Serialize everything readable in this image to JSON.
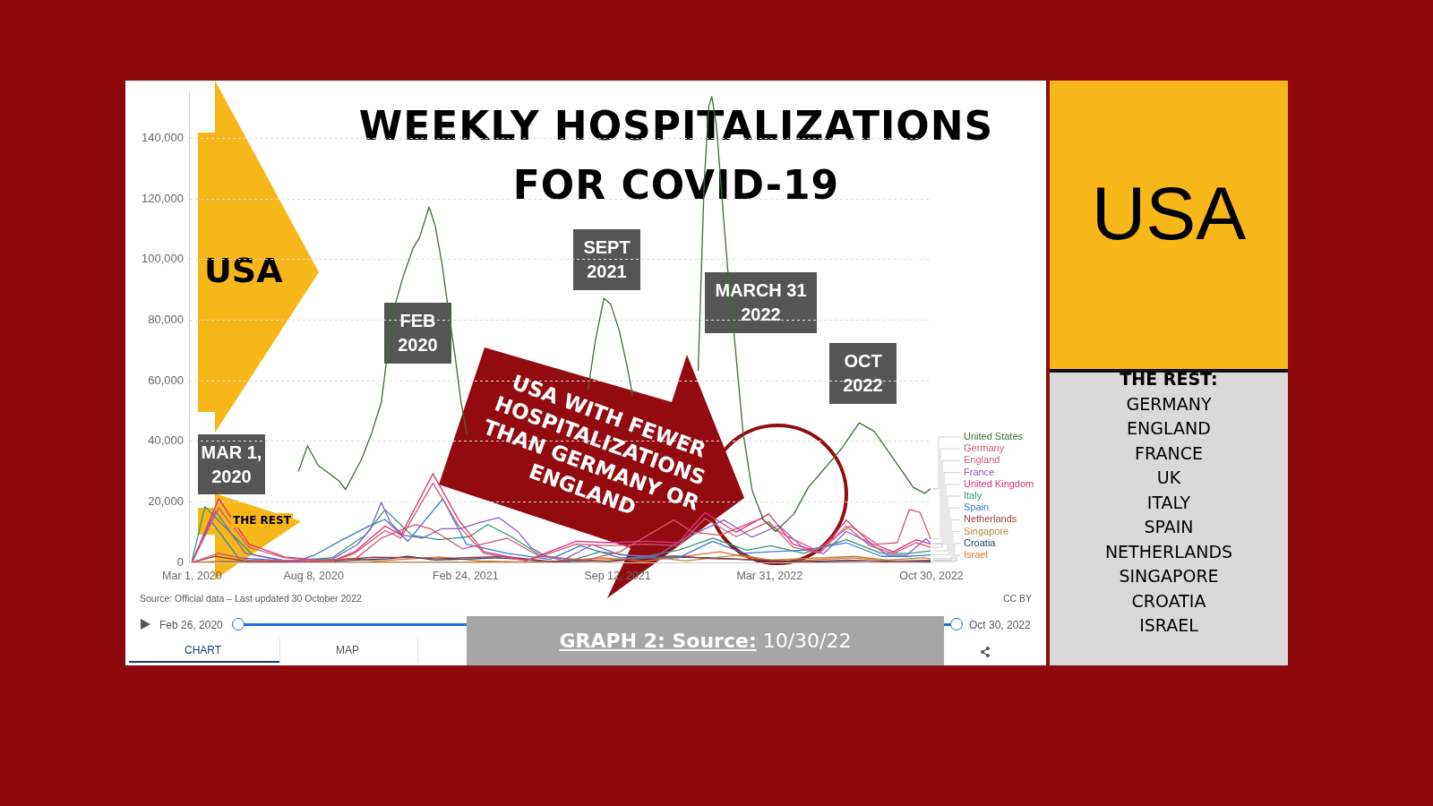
{
  "chart_data": {
    "type": "line",
    "title": "WEEKLY HOSPITALIZATIONS FOR COVID-19",
    "xlim": [
      "2020-02-26",
      "2022-10-30"
    ],
    "xticks": [
      {
        "value": "2020-03-01",
        "label": "Mar 1, 2020"
      },
      {
        "value": "2020-08-08",
        "label": "Aug 8, 2020"
      },
      {
        "value": "2021-02-24",
        "label": "Feb 24, 2021"
      },
      {
        "value": "2021-09-12",
        "label": "Sep 12, 2021"
      },
      {
        "value": "2022-03-31",
        "label": "Mar 31, 2022"
      },
      {
        "value": "2022-10-30",
        "label": "Oct 30, 2022"
      }
    ],
    "ylim": [
      0,
      155000
    ],
    "yticks": [
      0,
      {
        "value": 20000,
        "label": "20,000"
      },
      {
        "value": 40000,
        "label": "40,000"
      },
      {
        "value": 60000,
        "label": "60,000"
      },
      {
        "value": 80000,
        "label": "80,000"
      },
      {
        "value": 100000,
        "label": "100,000"
      },
      {
        "value": 120000,
        "label": "120,000"
      },
      {
        "value": 140000,
        "label": "140,000"
      }
    ],
    "grid": "y",
    "legend": "right",
    "series": [
      {
        "name": "United States",
        "color": "#3b6e35",
        "x": [
          "2020-07-19",
          "2020-07-31",
          "2020-08-14",
          "2020-08-28",
          "2020-09-10",
          "2020-09-19",
          "2020-10-10",
          "2020-10-23",
          "2020-11-05",
          "2020-11-13",
          "2020-11-22",
          "2020-12-04",
          "2020-12-17",
          "2020-12-25",
          "2021-01-07",
          "2021-01-15",
          "2021-01-24",
          "2021-02-01",
          "2021-02-10",
          "2021-02-18",
          "2021-02-26",
          "2021-05-01",
          "2021-08-04",
          "2021-08-14",
          "2021-08-25",
          "2021-09-03",
          "2021-09-14",
          "2021-09-24",
          "2021-10-02",
          "2021-11-15",
          "2021-12-27",
          "2021-12-31",
          "2022-01-04",
          "2022-01-10",
          "2022-01-14",
          "2022-01-20",
          "2022-01-29",
          "2022-02-04",
          "2022-02-11",
          "2022-02-24",
          "2022-03-08",
          "2022-03-23",
          "2022-04-08",
          "2022-05-02",
          "2022-05-21",
          "2022-06-10",
          "2022-07-03",
          "2022-07-27",
          "2022-08-16",
          "2022-09-12",
          "2022-10-06",
          "2022-10-21",
          "2022-10-29"
        ],
        "values": [
          30000,
          38500,
          32000,
          29500,
          27000,
          24100,
          34000,
          42400,
          52800,
          68400,
          84000,
          94500,
          103800,
          107000,
          117300,
          111100,
          98600,
          84000,
          68400,
          52800,
          42000,
          null,
          57000,
          73600,
          87200,
          85200,
          76700,
          65400,
          54900,
          null,
          63200,
          94500,
          125800,
          150700,
          153800,
          144400,
          115200,
          96600,
          78800,
          43200,
          23800,
          14000,
          10200,
          16000,
          24800,
          30600,
          37400,
          46100,
          43200,
          33500,
          24800,
          22800,
          24300
        ]
      },
      {
        "name": "Germany",
        "color": "#d6566e",
        "x": [
          "2020-03-01",
          "2020-04-05",
          "2020-05-15",
          "2020-08-01",
          "2020-10-01",
          "2020-11-05",
          "2020-12-20",
          "2021-01-10",
          "2021-02-20",
          "2021-04-20",
          "2021-06-01",
          "2021-08-01",
          "2021-09-15",
          "2021-11-25",
          "2021-12-20",
          "2022-01-25",
          "2022-03-20",
          "2022-04-20",
          "2022-06-01",
          "2022-07-15",
          "2022-08-20",
          "2022-09-15",
          "2022-10-01",
          "2022-10-15",
          "2022-10-29"
        ],
        "values": [
          0,
          3000,
          800,
          300,
          1000,
          8000,
          12500,
          11000,
          4500,
          8000,
          2000,
          800,
          3500,
          14000,
          10000,
          9000,
          14500,
          9000,
          4000,
          12000,
          6000,
          6500,
          17500,
          16500,
          7800
        ]
      },
      {
        "name": "England",
        "color": "#cc5b74",
        "x": [
          "2020-03-01",
          "2020-04-05",
          "2020-05-15",
          "2020-07-01",
          "2020-09-01",
          "2020-10-01",
          "2020-11-10",
          "2020-12-01",
          "2021-01-12",
          "2021-02-15",
          "2021-03-20",
          "2021-05-15",
          "2021-07-20",
          "2021-09-01",
          "2021-10-20",
          "2021-12-01",
          "2022-01-05",
          "2022-02-15",
          "2022-03-30",
          "2022-05-01",
          "2022-06-05",
          "2022-07-10",
          "2022-08-10",
          "2022-09-10",
          "2022-10-10",
          "2022-10-29"
        ],
        "values": [
          0,
          18000,
          5000,
          1500,
          300,
          3000,
          10500,
          8000,
          26200,
          12000,
          3000,
          500,
          6000,
          5500,
          6000,
          5500,
          14500,
          8500,
          13500,
          5000,
          3000,
          12000,
          5500,
          3000,
          6500,
          5000
        ]
      },
      {
        "name": "France",
        "color": "#8a5cc8",
        "x": [
          "2020-03-01",
          "2020-04-01",
          "2020-05-10",
          "2020-07-01",
          "2020-09-01",
          "2020-10-05",
          "2020-10-22",
          "2020-11-05",
          "2020-11-17",
          "2020-12-04",
          "2020-12-29",
          "2021-01-23",
          "2021-02-17",
          "2021-03-15",
          "2021-04-09",
          "2021-05-04",
          "2021-05-21",
          "2021-06-11",
          "2021-07-02",
          "2021-08-10",
          "2021-09-15",
          "2021-11-01",
          "2021-12-10",
          "2022-01-30",
          "2022-03-08",
          "2022-04-12",
          "2022-05-16",
          "2022-06-10",
          "2022-07-10",
          "2022-08-03",
          "2022-09-03",
          "2022-09-27",
          "2022-10-23",
          "2022-10-29"
        ],
        "values": [
          0,
          17000,
          3000,
          600,
          1000,
          6000,
          11100,
          19800,
          13200,
          9000,
          8000,
          11100,
          11100,
          13200,
          14800,
          10100,
          4900,
          1800,
          700,
          5900,
          2500,
          2000,
          8000,
          14000,
          8300,
          12200,
          4400,
          2900,
          10200,
          7300,
          2400,
          2400,
          7800,
          6300
        ]
      },
      {
        "name": "United Kingdom",
        "color": "#e0307a",
        "x": [
          "2020-03-01",
          "2020-04-05",
          "2020-05-15",
          "2020-07-01",
          "2020-09-01",
          "2020-10-01",
          "2020-11-10",
          "2020-12-01",
          "2021-01-12",
          "2021-02-15",
          "2021-03-20",
          "2021-05-15",
          "2021-07-20",
          "2021-09-01",
          "2021-10-20",
          "2021-12-01",
          "2022-01-05",
          "2022-02-15",
          "2022-03-30",
          "2022-05-01",
          "2022-06-05",
          "2022-07-10",
          "2022-08-10",
          "2022-09-10",
          "2022-10-10",
          "2022-10-29"
        ],
        "values": [
          0,
          21000,
          6000,
          1800,
          400,
          3500,
          12000,
          9000,
          29300,
          14000,
          3500,
          600,
          7000,
          6500,
          7000,
          6500,
          16500,
          10000,
          16000,
          6000,
          3500,
          14000,
          6500,
          3500,
          7500,
          6000
        ]
      },
      {
        "name": "Italy",
        "color": "#2c9a72",
        "x": [
          "2020-03-01",
          "2020-03-18",
          "2020-04-20",
          "2020-05-20",
          "2020-07-01",
          "2020-09-01",
          "2020-10-15",
          "2020-11-10",
          "2020-12-15",
          "2021-01-20",
          "2021-03-01",
          "2021-03-25",
          "2021-04-25",
          "2021-06-01",
          "2021-07-15",
          "2021-08-20",
          "2021-10-15",
          "2021-12-01",
          "2022-01-15",
          "2022-03-01",
          "2022-04-01",
          "2022-05-15",
          "2022-07-10",
          "2022-08-25",
          "2022-10-01",
          "2022-10-29"
        ],
        "values": [
          500,
          18400,
          10000,
          2500,
          500,
          1500,
          9000,
          17400,
          9000,
          7500,
          8500,
          12500,
          8500,
          2500,
          800,
          3500,
          1800,
          4000,
          8000,
          4000,
          5500,
          3000,
          7500,
          3000,
          3000,
          3800
        ]
      },
      {
        "name": "Spain",
        "color": "#3a7ad0",
        "x": [
          "2020-03-01",
          "2020-03-25",
          "2020-05-01",
          "2020-07-15",
          "2020-08-10",
          "2020-09-15",
          "2020-10-20",
          "2020-11-10",
          "2020-12-10",
          "2021-01-25",
          "2021-02-25",
          "2021-04-20",
          "2021-06-15",
          "2021-07-25",
          "2021-09-15",
          "2021-12-01",
          "2022-01-15",
          "2022-02-25",
          "2022-04-01",
          "2022-05-15",
          "2022-07-10",
          "2022-08-25",
          "2022-10-01",
          "2022-10-29"
        ],
        "values": [
          0,
          14000,
          1500,
          300,
          2500,
          7500,
          12000,
          14200,
          7000,
          21000,
          6000,
          3000,
          1000,
          5500,
          1500,
          1500,
          7000,
          3000,
          3500,
          4000,
          6500,
          2000,
          2000,
          2500
        ]
      },
      {
        "name": "Netherlands",
        "color": "#9a3d3d",
        "x": [
          "2020-03-01",
          "2020-04-01",
          "2020-05-15",
          "2020-08-01",
          "2020-10-25",
          "2020-12-15",
          "2021-01-15",
          "2021-04-15",
          "2021-06-15",
          "2021-07-20",
          "2021-09-01",
          "2021-11-25",
          "2022-01-15",
          "2022-03-15",
          "2022-05-01",
          "2022-07-10",
          "2022-09-01",
          "2022-10-29"
        ],
        "values": [
          0,
          2000,
          300,
          100,
          1700,
          1600,
          1200,
          2000,
          300,
          700,
          300,
          2200,
          1200,
          900,
          200,
          800,
          300,
          700
        ]
      },
      {
        "name": "Singapore",
        "color": "#b8863a",
        "x": [
          "2020-03-01",
          "2020-04-20",
          "2020-08-01",
          "2021-06-01",
          "2021-09-25",
          "2021-10-25",
          "2021-12-10",
          "2022-02-20",
          "2022-04-01",
          "2022-07-20",
          "2022-09-01",
          "2022-10-20",
          "2022-10-29"
        ],
        "values": [
          0,
          300,
          100,
          100,
          1200,
          1800,
          500,
          2500,
          800,
          2000,
          800,
          1500,
          1200
        ]
      },
      {
        "name": "Croatia",
        "color": "#1e3f73",
        "x": [
          "2020-03-01",
          "2020-08-01",
          "2020-11-15",
          "2020-12-10",
          "2021-01-15",
          "2021-04-10",
          "2021-06-15",
          "2021-09-01",
          "2021-11-15",
          "2022-01-15",
          "2022-03-15",
          "2022-06-01",
          "2022-08-01",
          "2022-10-29"
        ],
        "values": [
          0,
          100,
          1200,
          2000,
          800,
          1500,
          200,
          500,
          1800,
          1500,
          700,
          200,
          400,
          300
        ]
      },
      {
        "name": "Israel",
        "color": "#e0702a",
        "x": [
          "2020-03-01",
          "2020-04-10",
          "2020-06-01",
          "2020-09-25",
          "2020-11-01",
          "2021-01-20",
          "2021-03-15",
          "2021-06-01",
          "2021-08-25",
          "2021-10-15",
          "2022-01-25",
          "2022-03-15",
          "2022-05-01",
          "2022-07-15",
          "2022-09-15",
          "2022-10-29"
        ],
        "values": [
          0,
          300,
          100,
          1200,
          500,
          1800,
          500,
          0,
          1500,
          300,
          3500,
          1000,
          500,
          1500,
          400,
          400
        ]
      }
    ],
    "annotations": [
      "USA",
      "FEB 2020",
      "SEPT 2021",
      "MARCH 31 2022",
      "OCT 2022",
      "MAR 1, 2020",
      "THE REST",
      "USA WITH FEWER HOSPITALIZATIONS THAN GERMANY OR ENGLAND",
      "Source: Official data – Last updated 30 October 2022",
      "CC BY",
      "Feb 26, 2020",
      "Oct 30, 2022",
      "CHART",
      "MAP",
      "GRAPH 2: Source: 10/30/22",
      "USA",
      "THE REST:",
      "GERMANY",
      "ENGLAND",
      "FRANCE",
      "UK",
      "ITALY",
      "SPAIN",
      "NETHERLANDS",
      "SINGAPORE",
      "CROATIA",
      "ISRAEL"
    ]
  }
}
